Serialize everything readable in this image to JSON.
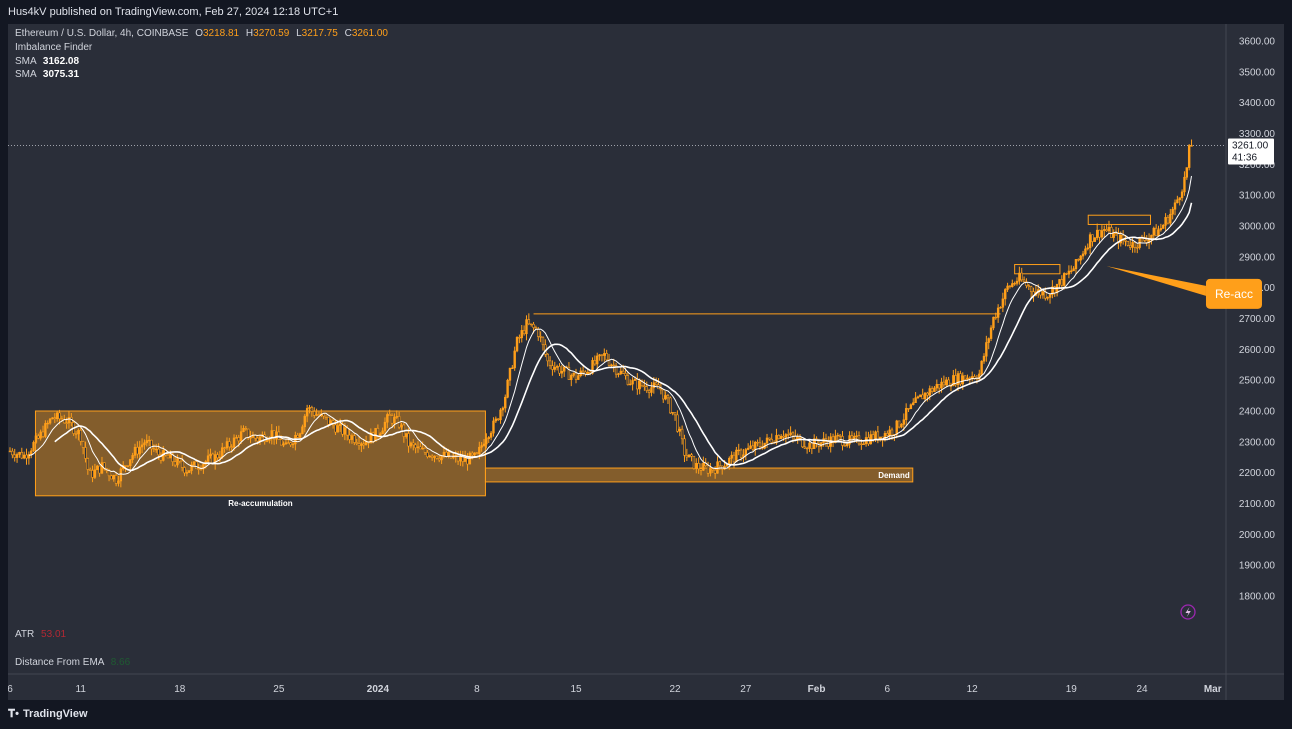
{
  "header": {
    "published": "Hus4kV published on TradingView.com, Feb 27, 2024 12:18 UTC+1"
  },
  "legend": {
    "symbol": "Ethereum / U.S. Dollar, 4h, COINBASE",
    "o_label": "O",
    "o": "3218.81",
    "h_label": "H",
    "h": "3270.59",
    "l_label": "L",
    "l": "3217.75",
    "c_label": "C",
    "c": "3261.00",
    "indicator1": "Imbalance Finder",
    "sma1_label": "SMA",
    "sma1": "3162.08",
    "sma2_label": "SMA",
    "sma2": "3075.31",
    "atr_label": "ATR",
    "atr": "53.01",
    "dist_label": "Distance From EMA",
    "dist": "8.66"
  },
  "footer": {
    "brand": "TradingView"
  },
  "colors": {
    "background": "#2a2e39",
    "candle": "#ff9f1a",
    "sma_fast": "#ffffff",
    "sma_slow": "#ffffff",
    "zone_fill": "#ff9f1a",
    "atr_value": "#b22833",
    "dist_value": "#1f5b32",
    "price_tag_bg": "#ffffff"
  },
  "chart_data": {
    "type": "candlestick",
    "symbol": "Ethereum / U.S. Dollar",
    "timeframe": "4h",
    "exchange": "COINBASE",
    "y_ticks": [
      "3600.00",
      "3500.00",
      "3400.00",
      "3300.00",
      "3200.00",
      "3100.00",
      "3000.00",
      "2900.00",
      "2800.00",
      "2700.00",
      "2600.00",
      "2500.00",
      "2400.00",
      "2300.00",
      "2200.00",
      "2100.00",
      "2000.00",
      "1900.00",
      "1800.00"
    ],
    "ylim": [
      1700,
      3650
    ],
    "x_tick_labels": [
      {
        "label": "6",
        "day": 0
      },
      {
        "label": "11",
        "day": 5
      },
      {
        "label": "18",
        "day": 12
      },
      {
        "label": "25",
        "day": 19
      },
      {
        "label": "2024",
        "day": 26
      },
      {
        "label": "8",
        "day": 33
      },
      {
        "label": "15",
        "day": 40
      },
      {
        "label": "22",
        "day": 47
      },
      {
        "label": "27",
        "day": 52
      },
      {
        "label": "Feb",
        "day": 57
      },
      {
        "label": "6",
        "day": 62
      },
      {
        "label": "12",
        "day": 68
      },
      {
        "label": "19",
        "day": 75
      },
      {
        "label": "24",
        "day": 80
      },
      {
        "label": "Mar",
        "day": 85
      }
    ],
    "price_path": [
      [
        0.0,
        2270
      ],
      [
        1.0,
        2255
      ],
      [
        2.0,
        2310
      ],
      [
        3.0,
        2380
      ],
      [
        4.0,
        2370
      ],
      [
        5.0,
        2320
      ],
      [
        5.6,
        2190
      ],
      [
        6.5,
        2220
      ],
      [
        7.5,
        2180
      ],
      [
        8.5,
        2250
      ],
      [
        9.5,
        2300
      ],
      [
        10.5,
        2260
      ],
      [
        11.5,
        2240
      ],
      [
        12.5,
        2210
      ],
      [
        13.5,
        2230
      ],
      [
        14.5,
        2250
      ],
      [
        15.5,
        2290
      ],
      [
        16.5,
        2330
      ],
      [
        17.5,
        2310
      ],
      [
        18.5,
        2330
      ],
      [
        19.5,
        2280
      ],
      [
        20.5,
        2340
      ],
      [
        21.0,
        2410
      ],
      [
        22.0,
        2380
      ],
      [
        23.0,
        2350
      ],
      [
        24.0,
        2320
      ],
      [
        25.0,
        2300
      ],
      [
        26.0,
        2330
      ],
      [
        26.8,
        2380
      ],
      [
        27.5,
        2360
      ],
      [
        28.2,
        2290
      ],
      [
        29.0,
        2270
      ],
      [
        30.0,
        2260
      ],
      [
        31.0,
        2250
      ],
      [
        32.0,
        2240
      ],
      [
        33.0,
        2250
      ],
      [
        33.6,
        2320
      ],
      [
        34.3,
        2360
      ],
      [
        35.0,
        2450
      ],
      [
        35.8,
        2620
      ],
      [
        36.5,
        2680
      ],
      [
        37.3,
        2660
      ],
      [
        38.0,
        2560
      ],
      [
        39.0,
        2530
      ],
      [
        40.0,
        2510
      ],
      [
        41.0,
        2540
      ],
      [
        42.0,
        2580
      ],
      [
        43.0,
        2530
      ],
      [
        44.0,
        2490
      ],
      [
        45.0,
        2480
      ],
      [
        46.0,
        2470
      ],
      [
        47.0,
        2380
      ],
      [
        47.7,
        2260
      ],
      [
        48.5,
        2220
      ],
      [
        49.5,
        2210
      ],
      [
        50.5,
        2230
      ],
      [
        51.5,
        2260
      ],
      [
        52.5,
        2280
      ],
      [
        53.5,
        2300
      ],
      [
        54.5,
        2330
      ],
      [
        55.5,
        2310
      ],
      [
        56.5,
        2290
      ],
      [
        57.5,
        2300
      ],
      [
        58.5,
        2310
      ],
      [
        59.5,
        2300
      ],
      [
        60.5,
        2310
      ],
      [
        61.5,
        2320
      ],
      [
        62.5,
        2340
      ],
      [
        63.5,
        2400
      ],
      [
        64.5,
        2450
      ],
      [
        65.5,
        2480
      ],
      [
        66.5,
        2500
      ],
      [
        67.5,
        2510
      ],
      [
        68.5,
        2520
      ],
      [
        69.5,
        2700
      ],
      [
        70.5,
        2800
      ],
      [
        71.3,
        2830
      ],
      [
        72.3,
        2790
      ],
      [
        73.3,
        2780
      ],
      [
        74.3,
        2820
      ],
      [
        75.3,
        2870
      ],
      [
        76.3,
        2960
      ],
      [
        77.3,
        2990
      ],
      [
        78.3,
        2960
      ],
      [
        79.3,
        2940
      ],
      [
        80.3,
        2960
      ],
      [
        81.3,
        2990
      ],
      [
        82.3,
        3060
      ],
      [
        83.0,
        3150
      ],
      [
        83.5,
        3261
      ]
    ],
    "sma_fast_last": 3162.08,
    "sma_slow_last": 3075.31,
    "last_price": 3261.0,
    "countdown": "41:36",
    "zones": [
      {
        "label": "Re-accumulation",
        "x0": 1.8,
        "x1": 33.6,
        "y0": 2125,
        "y1": 2400
      },
      {
        "label": "Demand",
        "x0": 33.6,
        "x1": 63.8,
        "y0": 2170,
        "y1": 2215
      },
      {
        "label": "",
        "x0": 37.0,
        "x1": 70.0,
        "y0": 2715,
        "y1": 2715,
        "kind": "level"
      },
      {
        "label": "",
        "x0": 71.0,
        "x1": 74.2,
        "y0": 2845,
        "y1": 2875,
        "kind": "box"
      },
      {
        "label": "",
        "x0": 76.2,
        "x1": 80.6,
        "y0": 3005,
        "y1": 3035,
        "kind": "box"
      }
    ],
    "annotations": [
      {
        "text": "Re-acc",
        "day": 86.5,
        "price": 2780,
        "point_day": 77.5,
        "point_price": 2870
      }
    ],
    "indicator_panes": [
      "ATR",
      "Distance From EMA"
    ]
  }
}
